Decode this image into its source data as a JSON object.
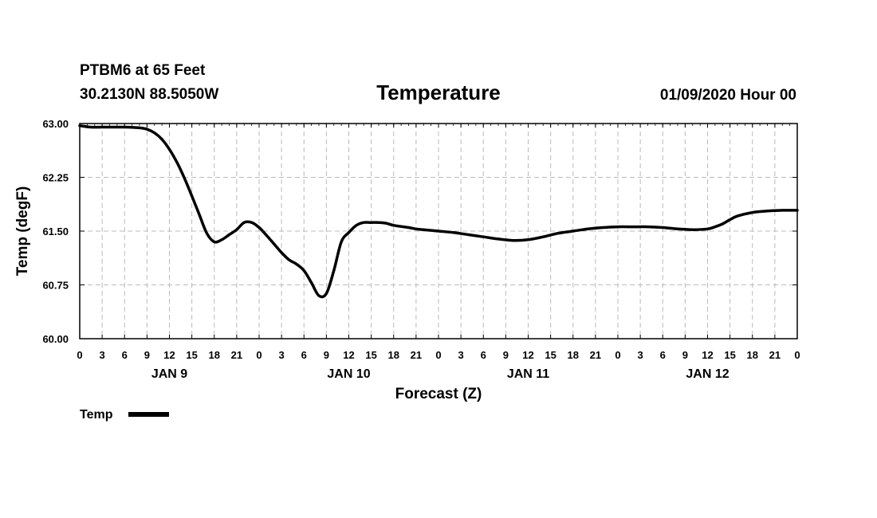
{
  "header": {
    "station": "PTBM6 at 65 Feet",
    "coords": "30.2130N 88.5050W",
    "title": "Temperature",
    "run": "01/09/2020 Hour 00"
  },
  "chart_data": {
    "type": "line",
    "title": "Temperature",
    "xlabel": "Forecast (Z)",
    "ylabel": "Temp (degF)",
    "ylim": [
      60.0,
      63.0
    ],
    "xlim": [
      0,
      96
    ],
    "y_ticks": [
      "60.00",
      "60.75",
      "61.50",
      "62.25",
      "63.00"
    ],
    "y_tick_values": [
      60.0,
      60.75,
      61.5,
      62.25,
      63.0
    ],
    "x_tick_labels": [
      "0",
      "3",
      "6",
      "9",
      "12",
      "15",
      "18",
      "21",
      "0",
      "3",
      "6",
      "9",
      "12",
      "15",
      "18",
      "21",
      "0",
      "3",
      "6",
      "9",
      "12",
      "15",
      "18",
      "21",
      "0",
      "3",
      "6",
      "9",
      "12",
      "15",
      "18",
      "21",
      "0"
    ],
    "day_labels": [
      {
        "label": "JAN 9",
        "hour": 12
      },
      {
        "label": "JAN 10",
        "hour": 36
      },
      {
        "label": "JAN 11",
        "hour": 60
      },
      {
        "label": "JAN 12",
        "hour": 84
      }
    ],
    "grid": true,
    "legend_position": "bottom-left",
    "series": [
      {
        "name": "Temp",
        "color": "#000000",
        "x": [
          0,
          1.5,
          3,
          6,
          8,
          9,
          10,
          11,
          12,
          13,
          14,
          15,
          16,
          17,
          18,
          19,
          20,
          21,
          22,
          23,
          24,
          25,
          26,
          27,
          28,
          29,
          30,
          31,
          32,
          33,
          34,
          35,
          36,
          37,
          38,
          39,
          40,
          41,
          42,
          44,
          45,
          46,
          48,
          50,
          52,
          54,
          56,
          58,
          60,
          62,
          64,
          66,
          68,
          70,
          72,
          74,
          76,
          78,
          80,
          82,
          84,
          85,
          86,
          87,
          88,
          90,
          92,
          94,
          95,
          96
        ],
        "y": [
          62.97,
          62.95,
          62.95,
          62.95,
          62.94,
          62.92,
          62.87,
          62.78,
          62.64,
          62.46,
          62.24,
          61.99,
          61.73,
          61.47,
          61.35,
          61.38,
          61.45,
          61.52,
          61.62,
          61.62,
          61.55,
          61.44,
          61.32,
          61.2,
          61.1,
          61.04,
          60.95,
          60.78,
          60.6,
          60.63,
          60.95,
          61.35,
          61.48,
          61.58,
          61.62,
          61.62,
          61.62,
          61.61,
          61.58,
          61.55,
          61.53,
          61.52,
          61.5,
          61.48,
          61.45,
          61.42,
          61.39,
          61.37,
          61.38,
          61.42,
          61.47,
          61.5,
          61.53,
          61.55,
          61.56,
          61.56,
          61.56,
          61.55,
          61.53,
          61.52,
          61.53,
          61.56,
          61.6,
          61.66,
          61.71,
          61.76,
          61.78,
          61.79,
          61.79,
          61.79
        ]
      }
    ]
  }
}
